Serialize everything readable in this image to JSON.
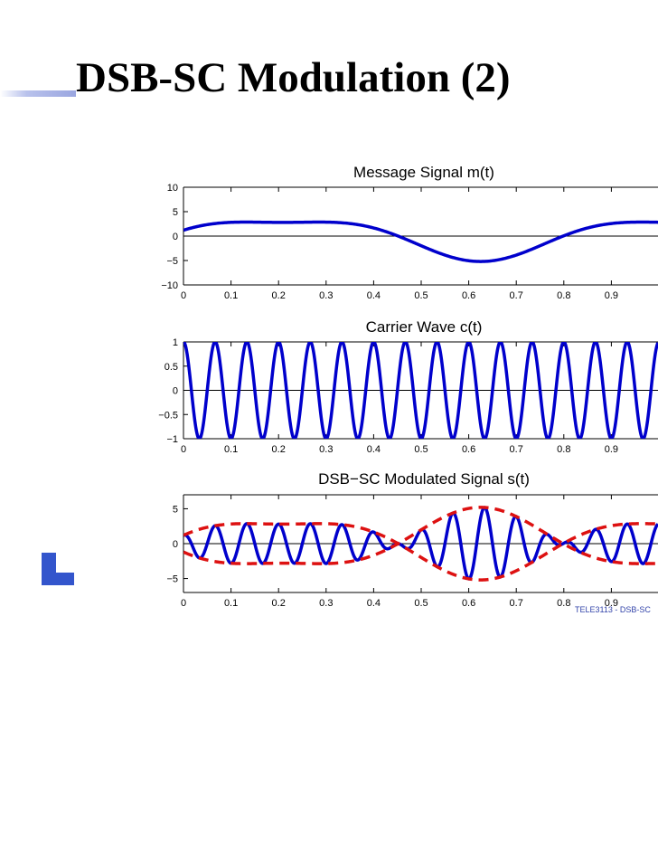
{
  "slide": {
    "title": "DSB-SC Modulation (2)",
    "footer": "TELE3113 - DSB-SC",
    "accent_color": "#3355cc"
  },
  "chart_data": [
    {
      "type": "line",
      "title": "Message Signal m(t)",
      "xlabel": "",
      "ylabel": "",
      "xlim": [
        0,
        1
      ],
      "ylim": [
        -10,
        10
      ],
      "x_ticks": [
        0,
        0.1,
        0.2,
        0.3,
        0.4,
        0.5,
        0.6,
        0.7,
        0.8,
        0.9
      ],
      "y_ticks": [
        10,
        5,
        0,
        -5,
        -10
      ],
      "y_tick_labels": [
        "10",
        "5",
        "0",
        "−5",
        "−10"
      ],
      "grid": false,
      "series": [
        {
          "formula": "m(t) = 4·sin(2π·1.2·t) + 1.2·cos(2π·2.4·t)",
          "color": "#0000cc",
          "style": "solid"
        }
      ],
      "zero_line": true
    },
    {
      "type": "line",
      "title": "Carrier Wave c(t)",
      "xlabel": "",
      "ylabel": "",
      "xlim": [
        0,
        1
      ],
      "ylim": [
        -1,
        1
      ],
      "x_ticks": [
        0,
        0.1,
        0.2,
        0.3,
        0.4,
        0.5,
        0.6,
        0.7,
        0.8,
        0.9
      ],
      "y_ticks": [
        1,
        0.5,
        0,
        -0.5,
        -1
      ],
      "y_tick_labels": [
        "1",
        "0.5",
        "0",
        "−0.5",
        "−1"
      ],
      "grid": false,
      "series": [
        {
          "formula": "c(t) = cos(2π·15·t)",
          "frequency": 15,
          "color": "#0000cc",
          "style": "solid"
        }
      ],
      "zero_line": true
    },
    {
      "type": "line",
      "title": "DSB−SC Modulated Signal s(t)",
      "xlabel": "",
      "ylabel": "",
      "xlim": [
        0,
        1
      ],
      "ylim": [
        -7,
        7
      ],
      "x_ticks": [
        0,
        0.1,
        0.2,
        0.3,
        0.4,
        0.5,
        0.6,
        0.7,
        0.8,
        0.9
      ],
      "y_ticks": [
        5,
        0,
        -5
      ],
      "y_tick_labels": [
        "5",
        "0",
        "−5"
      ],
      "grid": false,
      "series": [
        {
          "formula": "s(t) = m(t)·c(t)",
          "color": "#0000cc",
          "style": "solid"
        },
        {
          "formula": "+|m(t)| envelope",
          "color": "#dd1111",
          "style": "dashed"
        },
        {
          "formula": "−|m(t)| envelope",
          "color": "#dd1111",
          "style": "dashed"
        }
      ],
      "zero_line": true
    }
  ]
}
